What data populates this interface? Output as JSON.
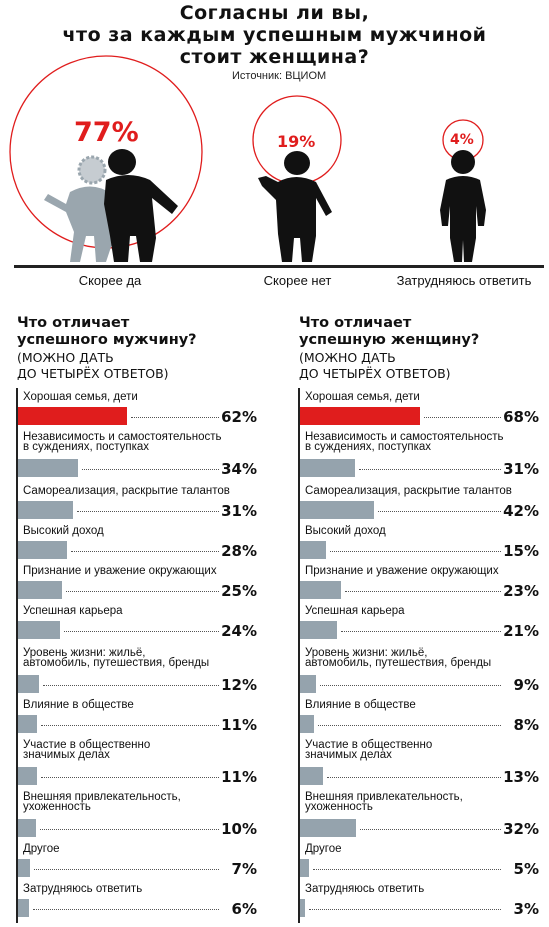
{
  "title_lines": [
    "Согласны ли вы,",
    "что за каждым успешным мужчиной",
    "стоит женщина?"
  ],
  "source": "Источник: ВЦИОМ",
  "colors": {
    "accent": "#e01d1d",
    "bar": "#95a3ad",
    "figure": "#111111",
    "figure_light": "#9aa6ae"
  },
  "top_chart": {
    "type": "bubble",
    "items": [
      {
        "label": "Скорее да",
        "value": 77,
        "value_text": "77%"
      },
      {
        "label": "Скорее нет",
        "value": 19,
        "value_text": "19%"
      },
      {
        "label": "Затрудняюсь ответить",
        "value": 4,
        "value_text": "4%"
      }
    ]
  },
  "chart_data": [
    {
      "type": "bubble",
      "title": "Согласны ли вы, что за каждым успешным мужчиной стоит женщина?",
      "categories": [
        "Скорее да",
        "Скорее нет",
        "Затрудняюсь ответить"
      ],
      "values": [
        77,
        19,
        4
      ]
    },
    {
      "type": "bar",
      "title": "Что отличает успешного мужчину?",
      "subtitle": "(МОЖНО ДАТЬ ДО ЧЕТЫРЁХ ОТВЕТОВ)",
      "xlim": [
        0,
        100
      ],
      "highlight_first": true,
      "categories": [
        "Хорошая семья, дети",
        "Независимость и самостоятельность в суждениях, поступках",
        "Самореализация, раскрытие талантов",
        "Высокий доход",
        "Признание и уважение окружающих",
        "Успешная карьера",
        "Уровень жизни: жильё, автомобиль, путешествия, бренды",
        "Влияние в обществе",
        "Участие в общественно значимых делах",
        "Внешняя привлекательность, ухоженность",
        "Другое",
        "Затрудняюсь ответить"
      ],
      "values": [
        62,
        34,
        31,
        28,
        25,
        24,
        12,
        11,
        11,
        10,
        7,
        6
      ]
    },
    {
      "type": "bar",
      "title": "Что отличает успешную женщину?",
      "subtitle": "(МОЖНО ДАТЬ ДО ЧЕТЫРЁХ ОТВЕТОВ)",
      "xlim": [
        0,
        100
      ],
      "highlight_first": true,
      "categories": [
        "Хорошая семья, дети",
        "Независимость и самостоятельность в суждениях, поступках",
        "Самореализация, раскрытие талантов",
        "Высокий доход",
        "Признание и уважение окружающих",
        "Успешная карьера",
        "Уровень жизни: жильё, автомобиль, путешествия, бренды",
        "Влияние в обществе",
        "Участие в общественно значимых делах",
        "Внешняя привлекательность, ухоженность",
        "Другое",
        "Затрудняюсь ответить"
      ],
      "values": [
        68,
        31,
        42,
        15,
        23,
        21,
        9,
        8,
        13,
        32,
        5,
        3
      ]
    }
  ],
  "men": {
    "title_lines": [
      "Что отличает",
      "успешного мужчину?"
    ],
    "subtitle_lines": [
      "(МОЖНО ДАТЬ",
      "ДО ЧЕТЫРЁХ ОТВЕТОВ)"
    ],
    "items": [
      {
        "label_lines": [
          "Хорошая семья, дети"
        ],
        "value": 62,
        "value_text": "62%"
      },
      {
        "label_lines": [
          "Независимость и самостоятельность",
          "в суждениях, поступках"
        ],
        "value": 34,
        "value_text": "34%"
      },
      {
        "label_lines": [
          "Самореализация, раскрытие талантов"
        ],
        "value": 31,
        "value_text": "31%"
      },
      {
        "label_lines": [
          "Высокий доход"
        ],
        "value": 28,
        "value_text": "28%"
      },
      {
        "label_lines": [
          "Признание и уважение окружающих"
        ],
        "value": 25,
        "value_text": "25%"
      },
      {
        "label_lines": [
          "Успешная карьера"
        ],
        "value": 24,
        "value_text": "24%"
      },
      {
        "label_lines": [
          "Уровень жизни: жильё,",
          "автомобиль, путешествия, бренды"
        ],
        "value": 12,
        "value_text": "12%"
      },
      {
        "label_lines": [
          "Влияние в обществе"
        ],
        "value": 11,
        "value_text": "11%"
      },
      {
        "label_lines": [
          "Участие в общественно",
          "значимых делах"
        ],
        "value": 11,
        "value_text": "11%"
      },
      {
        "label_lines": [
          "Внешняя привлекательность,",
          "ухоженность"
        ],
        "value": 10,
        "value_text": "10%"
      },
      {
        "label_lines": [
          "Другое"
        ],
        "value": 7,
        "value_text": "7%"
      },
      {
        "label_lines": [
          "Затрудняюсь ответить"
        ],
        "value": 6,
        "value_text": "6%"
      }
    ]
  },
  "women": {
    "title_lines": [
      "Что отличает",
      "успешную женщину?"
    ],
    "subtitle_lines": [
      "(МОЖНО ДАТЬ",
      "ДО ЧЕТЫРЁХ ОТВЕТОВ)"
    ],
    "items": [
      {
        "label_lines": [
          "Хорошая семья, дети"
        ],
        "value": 68,
        "value_text": "68%"
      },
      {
        "label_lines": [
          "Независимость и самостоятельность",
          "в суждениях, поступках"
        ],
        "value": 31,
        "value_text": "31%"
      },
      {
        "label_lines": [
          "Самореализация, раскрытие талантов"
        ],
        "value": 42,
        "value_text": "42%"
      },
      {
        "label_lines": [
          "Высокий доход"
        ],
        "value": 15,
        "value_text": "15%"
      },
      {
        "label_lines": [
          "Признание и уважение окружающих"
        ],
        "value": 23,
        "value_text": "23%"
      },
      {
        "label_lines": [
          "Успешная карьера"
        ],
        "value": 21,
        "value_text": "21%"
      },
      {
        "label_lines": [
          "Уровень жизни: жильё,",
          "автомобиль, путешествия, бренды"
        ],
        "value": 9,
        "value_text": "9%"
      },
      {
        "label_lines": [
          "Влияние в обществе"
        ],
        "value": 8,
        "value_text": "8%"
      },
      {
        "label_lines": [
          "Участие в общественно",
          "значимых делах"
        ],
        "value": 13,
        "value_text": "13%"
      },
      {
        "label_lines": [
          "Внешняя привлекательность,",
          "ухоженность"
        ],
        "value": 32,
        "value_text": "32%"
      },
      {
        "label_lines": [
          "Другое"
        ],
        "value": 5,
        "value_text": "5%"
      },
      {
        "label_lines": [
          "Затрудняюсь ответить"
        ],
        "value": 3,
        "value_text": "3%"
      }
    ]
  }
}
